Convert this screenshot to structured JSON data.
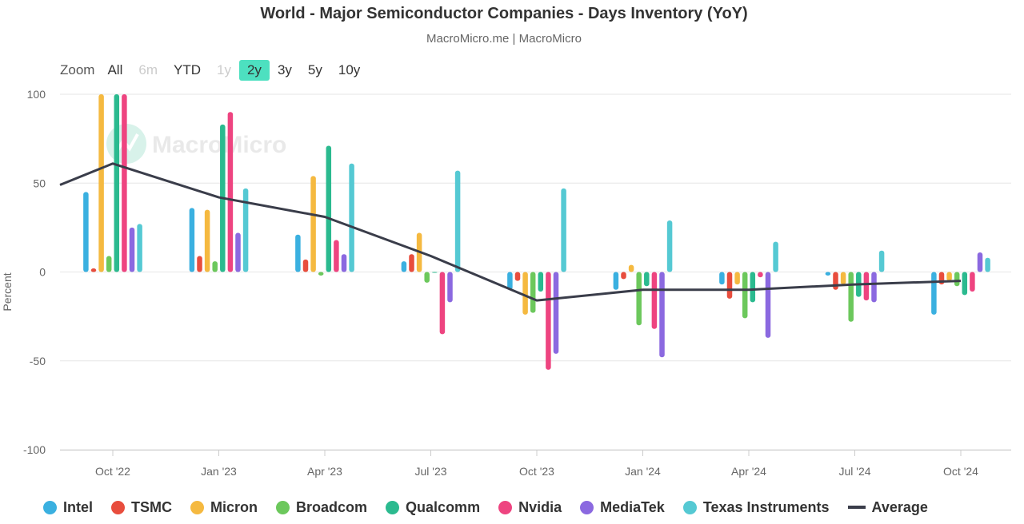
{
  "chart_data": {
    "type": "bar",
    "title": "World - Major Semiconductor Companies - Days Inventory (YoY)",
    "subtitle": "MacroMicro.me | MacroMicro",
    "watermark": "MacroMicro",
    "ylabel": "Percent",
    "ylim": [
      -100,
      100
    ],
    "yticks": [
      100,
      50,
      0,
      -50,
      -100
    ],
    "grid": true,
    "legend_position": "bottom",
    "categories": [
      "Oct '22",
      "Jan '23",
      "Apr '23",
      "Jul '23",
      "Oct '23",
      "Jan '24",
      "Apr '24",
      "Jul '24",
      "Oct '24"
    ],
    "series": [
      {
        "name": "Intel",
        "color": "#3ab0e0",
        "values": [
          45,
          36,
          21,
          6,
          -10,
          -10,
          -7,
          -2,
          -24
        ]
      },
      {
        "name": "TSMC",
        "color": "#e84d3d",
        "values": [
          2,
          9,
          7,
          10,
          -5,
          -4,
          -15,
          -10,
          -7
        ]
      },
      {
        "name": "Micron",
        "color": "#f5b940",
        "values": [
          100,
          35,
          54,
          22,
          -24,
          4,
          -7,
          -7,
          -5
        ]
      },
      {
        "name": "Broadcom",
        "color": "#6cc85c",
        "values": [
          9,
          6,
          -2,
          -6,
          -23,
          -30,
          -26,
          -28,
          -8
        ]
      },
      {
        "name": "Qualcomm",
        "color": "#2bba8f",
        "values": [
          100,
          83,
          71,
          0,
          -11,
          -8,
          -17,
          -14,
          -13
        ]
      },
      {
        "name": "Nvidia",
        "color": "#ee4480",
        "values": [
          100,
          90,
          18,
          -35,
          -55,
          -32,
          -3,
          -16,
          -11
        ]
      },
      {
        "name": "MediaTek",
        "color": "#8b69e0",
        "values": [
          25,
          22,
          10,
          -17,
          -46,
          -48,
          -37,
          -17,
          11
        ]
      },
      {
        "name": "Texas Instruments",
        "color": "#55c9d3",
        "values": [
          27,
          47,
          61,
          57,
          47,
          29,
          17,
          12,
          8
        ]
      }
    ],
    "average": {
      "name": "Average",
      "color": "#3a3d4a",
      "start_value": 49,
      "values": [
        61,
        42,
        31,
        9,
        -16,
        -10,
        -10,
        -7,
        -5
      ]
    }
  },
  "zoom": {
    "label": "Zoom",
    "buttons": [
      {
        "label": "All",
        "state": "normal"
      },
      {
        "label": "6m",
        "state": "disabled"
      },
      {
        "label": "YTD",
        "state": "normal"
      },
      {
        "label": "1y",
        "state": "disabled"
      },
      {
        "label": "2y",
        "state": "active"
      },
      {
        "label": "3y",
        "state": "normal"
      },
      {
        "label": "5y",
        "state": "normal"
      },
      {
        "label": "10y",
        "state": "normal"
      }
    ]
  }
}
